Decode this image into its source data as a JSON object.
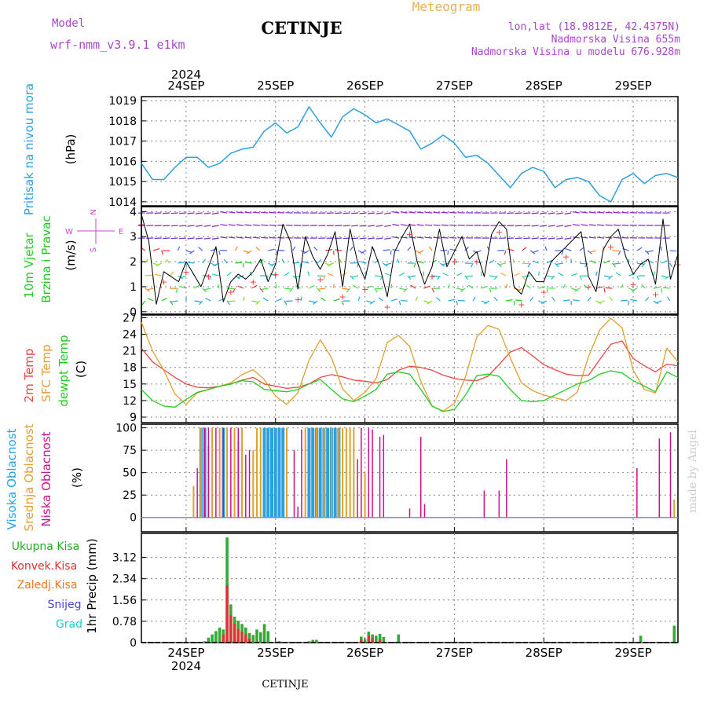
{
  "header": {
    "model_label": "Model",
    "model_name": "wrf-nmm_v3.9.1  e1km",
    "station": "CETINJE",
    "meteogram": "Meteogram",
    "lonlat": "lon,lat (18.9812E, 42.4375N)",
    "alt": "Nadmorska Visina 655m",
    "alt_model": "Nadmorska Visina u modelu 676.928m",
    "year_top": "2024",
    "year_bottom": "2024",
    "footer": "CETINJE",
    "watermark": "made by Angel"
  },
  "days": [
    "24SEP",
    "25SEP",
    "26SEP",
    "27SEP",
    "28SEP",
    "29SEP"
  ],
  "colors": {
    "pressure": "#2ca0e0",
    "wind_label": "#22cc22",
    "wind_black": "#000000",
    "wind_red": "#ee3333",
    "t2m": "#ee4444",
    "tsfc": "#e0a030",
    "dew": "#22cc22",
    "high_cloud": "#2ca0e0",
    "mid_cloud": "#e0a030",
    "low_cloud": "#cc1188",
    "total_precip": "#33aa33",
    "conv_precip": "#dd3333",
    "frozen": "#ee7722",
    "snow": "#4444dd",
    "hail": "#22cccc",
    "compass": "#cc44cc"
  },
  "panels": {
    "pressure": {
      "label": "Pritisak na nivou mora",
      "unit": "(hPa)"
    },
    "wind": {
      "label1": "10m Vjetar",
      "label2": "Brzina i Pravac",
      "unit": "(m/s)"
    },
    "temp": {
      "label1": "2m Temp",
      "label2": "SFC Temp",
      "label3": "dewpt Temp",
      "unit": "(C)"
    },
    "cloud": {
      "label1": "Visoka Oblacnost",
      "label2": "Srednja Oblacnost",
      "label3": "Niska Oblacnost",
      "unit": "(%)"
    },
    "precip": {
      "label1": "Ukupna Kisa",
      "label2": "Konvek.Kisa",
      "label3": "Zaledj.Kisa",
      "label4": "Snijeg",
      "label5": "Grad",
      "unit": "1hr Precip (mm)"
    }
  },
  "compass": {
    "n": "N",
    "s": "S",
    "e": "E",
    "w": "W"
  },
  "chart_data": [
    {
      "type": "line",
      "name": "pressure",
      "ylim": [
        1013.8,
        1019.2
      ],
      "yticks": [
        "1014",
        "1015",
        "1016",
        "1017",
        "1018",
        "1019"
      ],
      "x": [
        0,
        3,
        6,
        9,
        12,
        15,
        18,
        21,
        24,
        27,
        30,
        33,
        36,
        39,
        42,
        45,
        48,
        51,
        54,
        57,
        60,
        63,
        66,
        69,
        72,
        75,
        78,
        81,
        84,
        87,
        90,
        93,
        96,
        99,
        102,
        105,
        108,
        111,
        114,
        117,
        120,
        123,
        126,
        129,
        132,
        135,
        138,
        141,
        144
      ],
      "values": [
        1015.9,
        1015.1,
        1015.1,
        1015.7,
        1016.2,
        1016.2,
        1015.7,
        1015.9,
        1016.4,
        1016.6,
        1016.7,
        1017.5,
        1017.9,
        1017.4,
        1017.7,
        1018.7,
        1017.9,
        1017.2,
        1018.2,
        1018.6,
        1018.3,
        1017.9,
        1018.1,
        1017.8,
        1017.5,
        1016.6,
        1016.9,
        1017.3,
        1016.9,
        1016.2,
        1016.3,
        1015.9,
        1015.3,
        1014.7,
        1015.4,
        1015.7,
        1015.5,
        1014.7,
        1015.1,
        1015.2,
        1015.0,
        1014.3,
        1014.0,
        1015.1,
        1015.4,
        1014.9,
        1015.3,
        1015.4,
        1015.2
      ]
    },
    {
      "type": "line",
      "name": "wind",
      "ylim": [
        -0.1,
        4.2
      ],
      "yticks": [
        "0",
        "1",
        "2",
        "3",
        "4"
      ],
      "x": [
        0,
        2,
        4,
        6,
        8,
        10,
        12,
        14,
        16,
        18,
        20,
        22,
        24,
        26,
        28,
        30,
        32,
        34,
        36,
        38,
        40,
        42,
        44,
        46,
        48,
        50,
        52,
        54,
        56,
        58,
        60,
        62,
        64,
        66,
        68,
        70,
        72,
        74,
        76,
        78,
        80,
        82,
        84,
        86,
        88,
        90,
        92,
        94,
        96,
        98,
        100,
        102,
        104,
        106,
        108,
        110,
        112,
        114,
        116,
        118,
        120,
        122,
        124,
        126,
        128,
        130,
        132,
        134,
        136,
        138,
        140,
        142,
        144
      ],
      "values": [
        3.9,
        2.8,
        0.3,
        1.6,
        1.4,
        1.2,
        2.0,
        1.5,
        1.0,
        1.8,
        2.6,
        0.4,
        1.2,
        1.5,
        1.3,
        1.6,
        2.1,
        1.2,
        1.9,
        3.5,
        2.8,
        0.9,
        3.0,
        2.2,
        1.7,
        2.3,
        3.2,
        1.0,
        3.3,
        2.0,
        1.3,
        2.6,
        1.8,
        0.6,
        2.4,
        3.0,
        3.5,
        2.0,
        1.1,
        1.8,
        3.3,
        1.8,
        2.4,
        3.0,
        2.1,
        2.4,
        1.4,
        3.1,
        3.6,
        3.3,
        1.0,
        0.7,
        1.6,
        1.2,
        1.2,
        2.0,
        2.3,
        2.6,
        2.9,
        3.2,
        1.4,
        0.8,
        2.5,
        3.0,
        3.3,
        2.2,
        1.5,
        1.9,
        2.1,
        1.1,
        3.7,
        1.3,
        2.3
      ]
    },
    {
      "type": "line",
      "x": [
        0,
        3,
        6,
        9,
        12,
        15,
        18,
        21,
        24,
        27,
        30,
        33,
        36,
        39,
        42,
        45,
        48,
        51,
        54,
        57,
        60,
        63,
        66,
        69,
        72,
        75,
        78,
        81,
        84,
        87,
        90,
        93,
        96,
        99,
        102,
        105,
        108,
        111,
        114,
        117,
        120,
        123,
        126,
        129,
        132,
        135,
        138,
        141,
        144
      ],
      "ylim": [
        8,
        27.5
      ],
      "yticks": [
        "9",
        "12",
        "15",
        "18",
        "21",
        "24",
        "27"
      ],
      "series": [
        {
          "name": "2m Temp",
          "values": [
            21.5,
            19.0,
            17.6,
            16.2,
            15.0,
            14.4,
            14.3,
            14.6,
            15.0,
            15.7,
            16.2,
            15.0,
            14.6,
            14.2,
            14.4,
            15.0,
            16.2,
            16.7,
            16.3,
            15.7,
            15.5,
            15.2,
            15.8,
            17.5,
            18.2,
            18.0,
            17.5,
            16.6,
            16.0,
            15.7,
            15.6,
            16.4,
            18.5,
            20.8,
            21.6,
            20.1,
            18.5,
            17.6,
            16.8,
            16.5,
            16.6,
            19.4,
            22.2,
            22.8,
            19.6,
            18.3,
            17.2,
            18.6,
            18.3
          ]
        },
        {
          "name": "SFC Temp",
          "values": [
            26.2,
            21.0,
            17.5,
            13.2,
            11.3,
            13.4,
            14.0,
            14.6,
            15.2,
            16.7,
            17.6,
            15.8,
            12.8,
            11.3,
            13.4,
            19.3,
            23.0,
            19.8,
            14.1,
            12.0,
            13.5,
            16.0,
            22.5,
            23.8,
            21.8,
            15.5,
            11.0,
            10.1,
            11.5,
            16.3,
            23.5,
            25.6,
            24.9,
            19.7,
            15.2,
            13.8,
            13.0,
            12.5,
            12.0,
            13.5,
            20.0,
            24.8,
            26.9,
            25.2,
            17.5,
            14.0,
            13.4,
            21.5,
            19.0
          ]
        },
        {
          "name": "dewpt Temp",
          "values": [
            14.0,
            12.0,
            11.0,
            10.8,
            12.2,
            13.5,
            14.0,
            14.6,
            15.0,
            15.6,
            15.4,
            14.0,
            13.8,
            13.6,
            14.0,
            15.0,
            15.8,
            14.0,
            12.3,
            11.8,
            12.8,
            14.0,
            16.8,
            17.2,
            16.8,
            14.0,
            11.0,
            10.0,
            10.4,
            13.0,
            16.5,
            16.8,
            16.4,
            14.0,
            12.0,
            11.8,
            12.0,
            13.0,
            14.0,
            15.0,
            15.6,
            16.8,
            17.4,
            17.0,
            15.6,
            14.6,
            13.6,
            17.2,
            16.2
          ]
        }
      ]
    },
    {
      "type": "bar",
      "name": "cloud",
      "ylim": [
        0,
        100
      ],
      "yticks": [
        "0",
        "25",
        "50",
        "75",
        "100"
      ],
      "series": [
        {
          "name": "Visoka Oblacnost",
          "x": [
            16,
            17,
            22,
            33,
            34,
            35,
            36,
            37,
            38,
            45,
            46,
            47,
            48,
            49,
            50,
            51,
            52,
            53
          ],
          "values": [
            100,
            100,
            100,
            100,
            100,
            100,
            100,
            100,
            100,
            100,
            100,
            100,
            100,
            100,
            100,
            100,
            100,
            100
          ]
        },
        {
          "name": "Srednja Oblacnost",
          "x": [
            14,
            16,
            18,
            19,
            21,
            23,
            25,
            26,
            27,
            30,
            31,
            32,
            39,
            44,
            47,
            49,
            51,
            53,
            54,
            55,
            56,
            57,
            60,
            143
          ],
          "values": [
            35,
            100,
            80,
            100,
            100,
            100,
            100,
            85,
            100,
            75,
            100,
            100,
            100,
            100,
            100,
            100,
            100,
            100,
            100,
            100,
            100,
            100,
            50,
            20
          ]
        },
        {
          "name": "Niska Oblacnost",
          "x": [
            15,
            17,
            18,
            20,
            22,
            24,
            26,
            28,
            29,
            41,
            42,
            43,
            58,
            59,
            61,
            62,
            64,
            65,
            72,
            75,
            76,
            92,
            96,
            98,
            133,
            139,
            142
          ],
          "values": [
            55,
            100,
            100,
            100,
            100,
            100,
            100,
            70,
            75,
            75,
            12,
            98,
            65,
            100,
            100,
            98,
            90,
            92,
            10,
            90,
            15,
            30,
            30,
            65,
            55,
            88,
            95
          ]
        }
      ]
    },
    {
      "type": "bar",
      "name": "precip",
      "ylim": [
        0,
        4.0
      ],
      "yticks": [
        "0",
        "0.78",
        "1.56",
        "2.34",
        "3.12"
      ],
      "series": [
        {
          "name": "Ukupna Kisa",
          "x": [
            17,
            18,
            19,
            20,
            21,
            22,
            23,
            24,
            25,
            26,
            27,
            28,
            29,
            30,
            31,
            32,
            33,
            34,
            37,
            45,
            46,
            47,
            59,
            60,
            61,
            62,
            63,
            64,
            65,
            69,
            134,
            143
          ],
          "values": [
            0.05,
            0.18,
            0.3,
            0.42,
            0.55,
            0.48,
            3.85,
            1.4,
            0.95,
            0.8,
            0.68,
            0.55,
            0.35,
            0.28,
            0.48,
            0.38,
            0.68,
            0.42,
            0.05,
            0.05,
            0.1,
            0.1,
            0.22,
            0.12,
            0.4,
            0.3,
            0.25,
            0.32,
            0.2,
            0.3,
            0.25,
            0.62
          ]
        },
        {
          "name": "Konvek.Kisa",
          "x": [
            22,
            23,
            24,
            25,
            26,
            27,
            28,
            29,
            59,
            61,
            62,
            64
          ],
          "values": [
            0.3,
            2.1,
            1.0,
            0.7,
            0.5,
            0.4,
            0.3,
            0.15,
            0.1,
            0.25,
            0.15,
            0.12
          ]
        }
      ]
    }
  ]
}
